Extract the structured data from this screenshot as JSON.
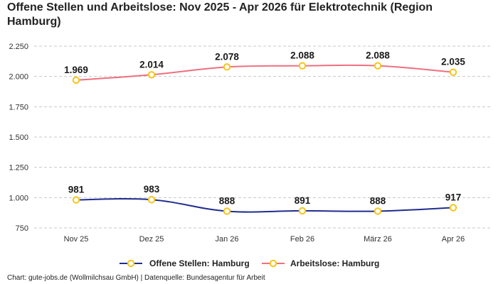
{
  "title": "Offene Stellen und Arbeitslose: Nov 2025 - Apr 2026 für Elektrotechnik (Region Hamburg)",
  "footer": "Chart: gute-jobs.de (Wollmilchsau GmbH) | Datenquelle: Bundesagentur für Arbeit",
  "colors": {
    "offene": "#1f2d8c",
    "arbeitslose": "#ef6f7f",
    "marker": "#f5c518",
    "grid": "#c8c8c8"
  },
  "chart_data": {
    "type": "line",
    "categories": [
      "Nov 25",
      "Dez 25",
      "Jan 26",
      "Feb 26",
      "März 26",
      "Apr 26"
    ],
    "ylim": [
      750,
      2250
    ],
    "yticks": [
      750,
      1000,
      1250,
      1500,
      1750,
      2000,
      2250
    ],
    "ytick_labels": [
      "750",
      "1.000",
      "1.250",
      "1.500",
      "1.750",
      "2.000",
      "2.250"
    ],
    "grid": "horizontal dashed",
    "legend": "bottom",
    "series": [
      {
        "name": "Offene Stellen: Hamburg",
        "values": [
          981,
          983,
          888,
          891,
          888,
          917
        ],
        "labels": [
          "981",
          "983",
          "888",
          "891",
          "888",
          "917"
        ]
      },
      {
        "name": "Arbeitslose: Hamburg",
        "values": [
          1969,
          2014,
          2078,
          2088,
          2088,
          2035
        ],
        "labels": [
          "1.969",
          "2.014",
          "2.078",
          "2.088",
          "2.088",
          "2.035"
        ]
      }
    ]
  }
}
